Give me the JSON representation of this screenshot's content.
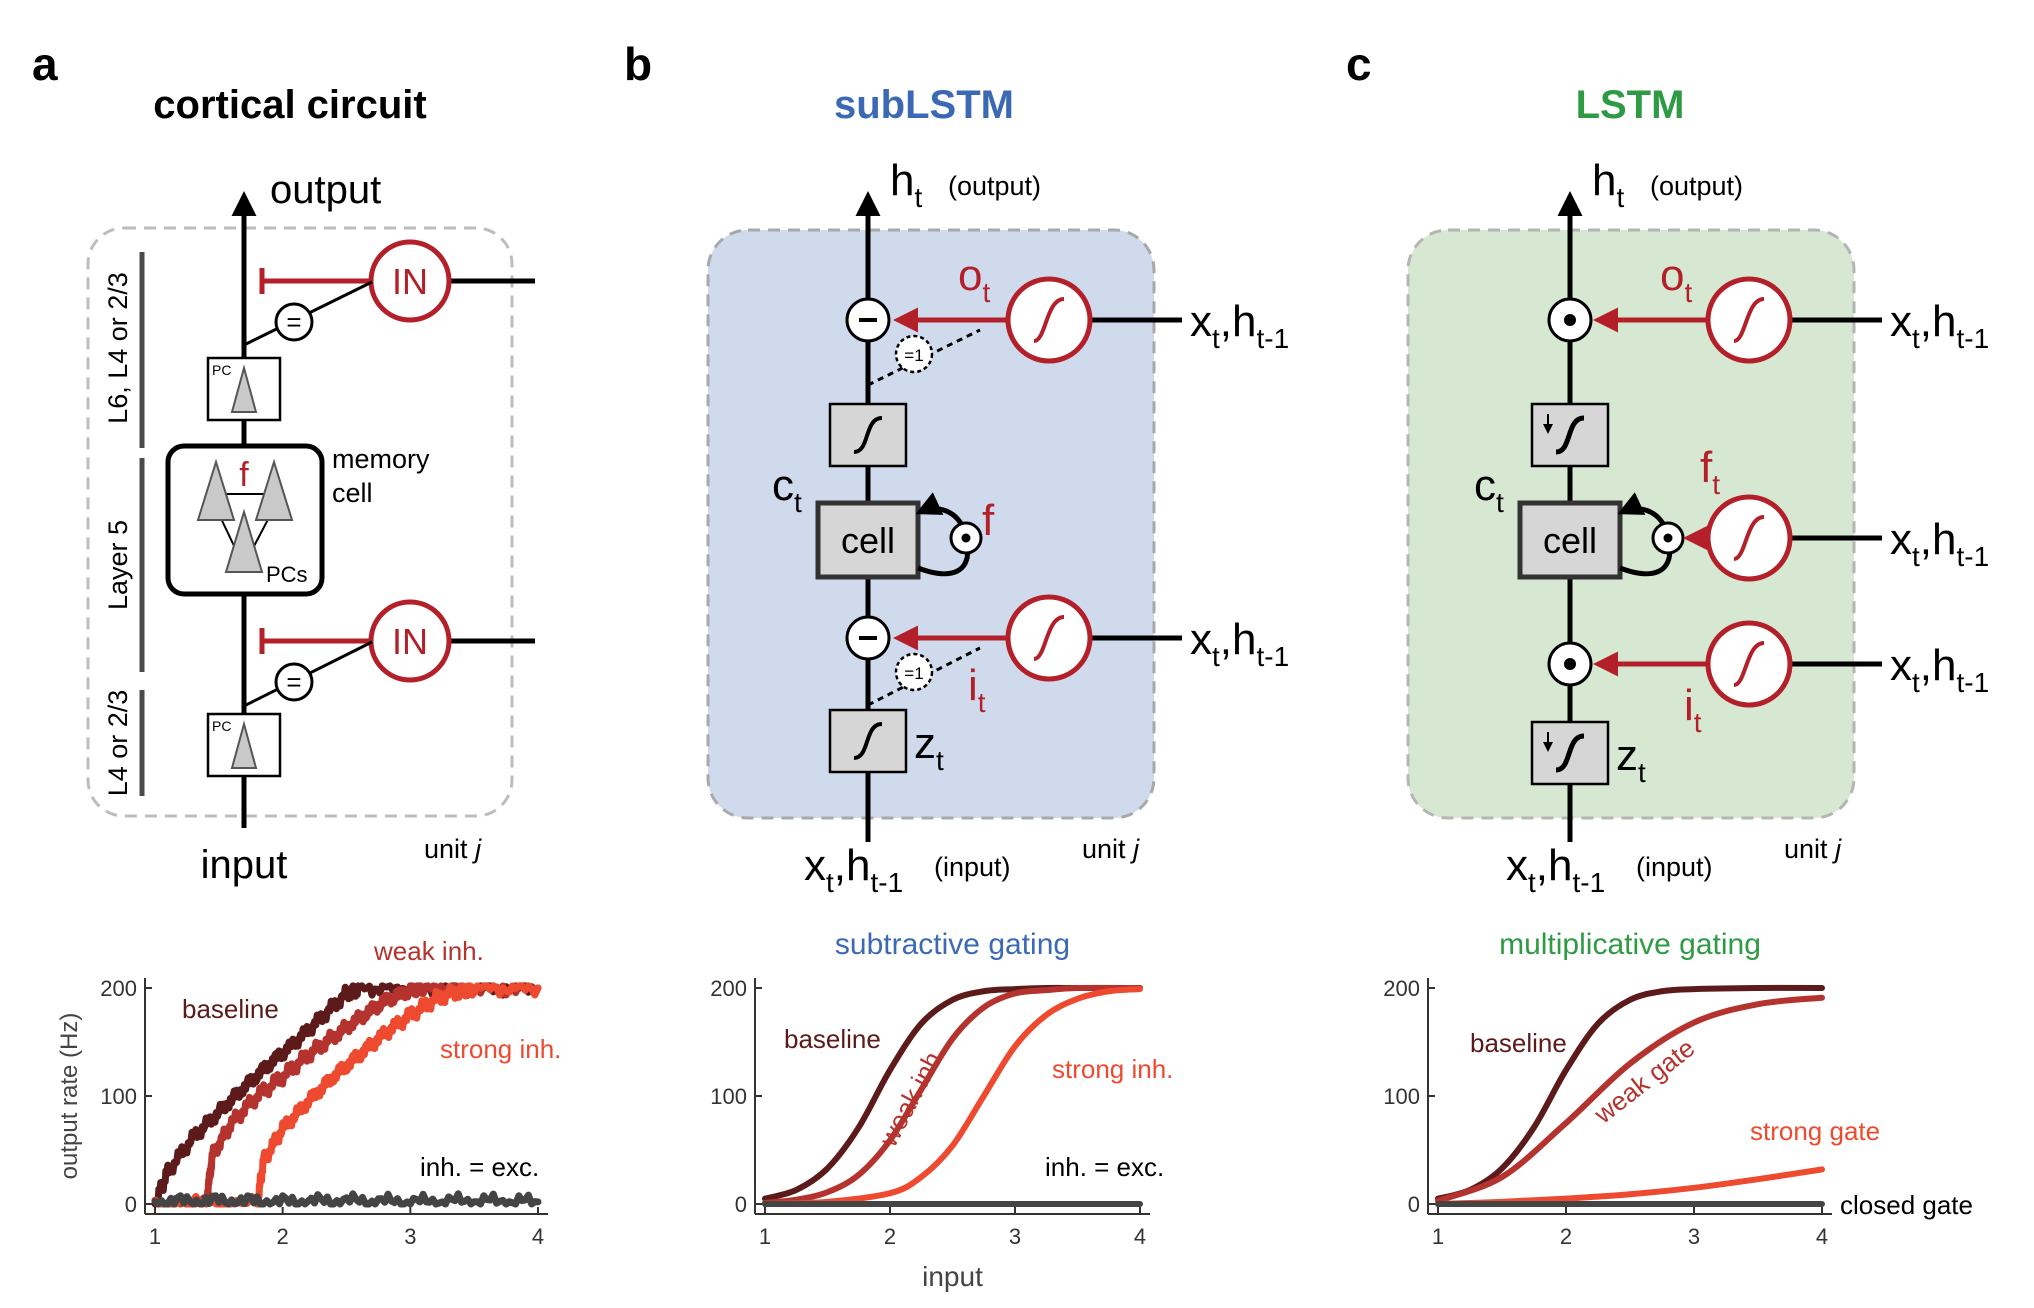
{
  "panels": {
    "a": {
      "letter": "a",
      "title": "cortical circuit",
      "output": "output",
      "input": "input",
      "unit": "unit",
      "unit_var": "j",
      "interneuron": "IN",
      "equal_sign": "=",
      "pc": "PC",
      "forget": "f",
      "memory_cell": [
        "memory",
        "cell"
      ],
      "pcs": "PCs",
      "layer_upper": "L6, L4 or 2/3",
      "layer_middle": "Layer 5",
      "layer_lower": "L4 or 2/3"
    },
    "b": {
      "letter": "b",
      "title": "subLSTM",
      "title_color": "#3b69b3",
      "cell": "cell",
      "gate_o": "o",
      "gate_o_sub": "t",
      "gate_i": "i",
      "gate_i_sub": "t",
      "forget": "f",
      "ct": "c",
      "ct_sub": "t",
      "zt": "z",
      "zt_sub": "t",
      "ht": "h",
      "ht_sub": "t",
      "output_note": "(output)",
      "input_note": "(input)",
      "xt": "x",
      "xt_sub": "t",
      "comma": ",",
      "h_prev": "h",
      "h_prev_sub": "t-1",
      "eq1": "=1",
      "unit": "unit",
      "unit_var": "j",
      "background": "#cfdaed"
    },
    "c": {
      "letter": "c",
      "title": "LSTM",
      "title_color": "#2f9a44",
      "cell": "cell",
      "gate_o": "o",
      "gate_o_sub": "t",
      "gate_f": "f",
      "gate_f_sub": "t",
      "gate_i": "i",
      "gate_i_sub": "t",
      "ct": "c",
      "ct_sub": "t",
      "zt": "z",
      "zt_sub": "t",
      "ht": "h",
      "ht_sub": "t",
      "output_note": "(output)",
      "input_note": "(input)",
      "xt": "x",
      "xt_sub": "t",
      "comma": ",",
      "h_prev": "h",
      "h_prev_sub": "t-1",
      "unit": "unit",
      "unit_var": "j",
      "background": "#d6e8d2"
    }
  },
  "colors": {
    "gate_red": "#b3202a",
    "baseline": "#5c1a1a",
    "weak": "#b5332e",
    "strong": "#ee4a30",
    "equal": "#444444"
  },
  "chart_data": [
    {
      "type": "line",
      "title": "",
      "xlabel": "",
      "ylabel": "output rate (Hz)",
      "xlim": [
        1,
        4
      ],
      "ylim": [
        0,
        200
      ],
      "xticks": [
        1,
        2,
        3,
        4
      ],
      "yticks": [
        0,
        100,
        200
      ],
      "series": [
        {
          "name": "baseline",
          "color": "#5c1a1a",
          "x": [
            1.0,
            1.1,
            1.3,
            1.5,
            1.7,
            1.9,
            2.1,
            2.3,
            2.5,
            2.6,
            3.0,
            3.5,
            4.0
          ],
          "y": [
            0,
            30,
            62,
            85,
            108,
            130,
            150,
            172,
            195,
            200,
            200,
            200,
            200
          ]
        },
        {
          "name": "weak inh.",
          "color": "#b5332e",
          "x": [
            1.0,
            1.4,
            1.45,
            1.6,
            1.8,
            2.0,
            2.2,
            2.4,
            2.6,
            2.8,
            3.0,
            3.1,
            3.5,
            4.0
          ],
          "y": [
            0,
            0,
            45,
            75,
            100,
            118,
            138,
            155,
            172,
            188,
            198,
            200,
            200,
            200
          ]
        },
        {
          "name": "strong inh.",
          "color": "#ee4a30",
          "x": [
            1.0,
            1.8,
            1.85,
            2.0,
            2.2,
            2.4,
            2.6,
            2.8,
            3.0,
            3.2,
            3.4,
            3.5,
            4.0
          ],
          "y": [
            0,
            0,
            40,
            70,
            95,
            118,
            138,
            158,
            175,
            190,
            198,
            200,
            200
          ]
        },
        {
          "name": "inh. = exc.",
          "color": "#444444",
          "x": [
            1.0,
            1.5,
            2.0,
            2.5,
            3.0,
            3.5,
            4.0
          ],
          "y": [
            2,
            3,
            2,
            3,
            2,
            3,
            2
          ]
        }
      ]
    },
    {
      "type": "line",
      "title": "subtractive gating",
      "title_color": "#3b69b3",
      "xlabel": "input",
      "ylabel": "",
      "xlim": [
        1,
        4
      ],
      "ylim": [
        0,
        200
      ],
      "xticks": [
        1,
        2,
        3,
        4
      ],
      "yticks": [
        0,
        100,
        200
      ],
      "series": [
        {
          "name": "baseline",
          "color": "#5c1a1a",
          "x": [
            1.0,
            1.25,
            1.5,
            1.75,
            2.0,
            2.25,
            2.5,
            2.75,
            3.0,
            3.25,
            3.5,
            4.0
          ],
          "y": [
            5,
            13,
            33,
            71,
            124,
            167,
            189,
            197,
            199,
            200,
            200,
            200
          ]
        },
        {
          "name": "weak inh.",
          "color": "#b5332e",
          "x": [
            1.0,
            1.25,
            1.5,
            1.75,
            2.0,
            2.25,
            2.5,
            2.75,
            3.0,
            3.25,
            3.5,
            4.0
          ],
          "y": [
            1,
            4,
            11,
            27,
            59,
            106,
            153,
            182,
            195,
            198,
            200,
            200
          ]
        },
        {
          "name": "strong inh.",
          "color": "#ee4a30",
          "x": [
            1.0,
            1.5,
            2.0,
            2.25,
            2.5,
            2.75,
            3.0,
            3.25,
            3.5,
            3.75,
            4.0
          ],
          "y": [
            0,
            2,
            10,
            25,
            54,
            100,
            146,
            175,
            190,
            197,
            199
          ]
        },
        {
          "name": "inh. = exc.",
          "color": "#444444",
          "x": [
            1.0,
            4.0
          ],
          "y": [
            0,
            0
          ]
        }
      ]
    },
    {
      "type": "line",
      "title": "multiplicative gating",
      "title_color": "#2f9a44",
      "xlabel": "",
      "ylabel": "",
      "xlim": [
        1,
        4
      ],
      "ylim": [
        0,
        200
      ],
      "xticks": [
        1,
        2,
        3,
        4
      ],
      "yticks": [
        0,
        100,
        200
      ],
      "series": [
        {
          "name": "baseline",
          "color": "#5c1a1a",
          "x": [
            1.0,
            1.25,
            1.5,
            1.75,
            2.0,
            2.25,
            2.5,
            2.75,
            3.0,
            3.5,
            4.0
          ],
          "y": [
            5,
            13,
            33,
            71,
            124,
            167,
            189,
            197,
            199,
            200,
            200
          ]
        },
        {
          "name": "weak gate",
          "color": "#b5332e",
          "x": [
            1.0,
            1.5,
            2.0,
            2.5,
            3.0,
            3.5,
            4.0
          ],
          "y": [
            3,
            25,
            75,
            130,
            168,
            185,
            191
          ]
        },
        {
          "name": "strong gate",
          "color": "#ee4a30",
          "x": [
            1.0,
            1.5,
            2.0,
            2.5,
            3.0,
            3.5,
            4.0
          ],
          "y": [
            0,
            2,
            5,
            9,
            15,
            23,
            32
          ]
        },
        {
          "name": "closed gate",
          "color": "#444444",
          "x": [
            1.0,
            4.0
          ],
          "y": [
            0,
            0
          ]
        }
      ]
    }
  ],
  "chart_labels": {
    "a": {
      "baseline": "baseline",
      "weak": "weak inh.",
      "strong": "strong inh.",
      "equal": "inh. = exc."
    },
    "b": {
      "baseline": "baseline",
      "weak": "weak inh.",
      "strong": "strong inh.",
      "equal": "inh. = exc."
    },
    "c": {
      "baseline": "baseline",
      "weak": "weak gate",
      "strong": "strong gate",
      "closed": "closed gate"
    }
  }
}
